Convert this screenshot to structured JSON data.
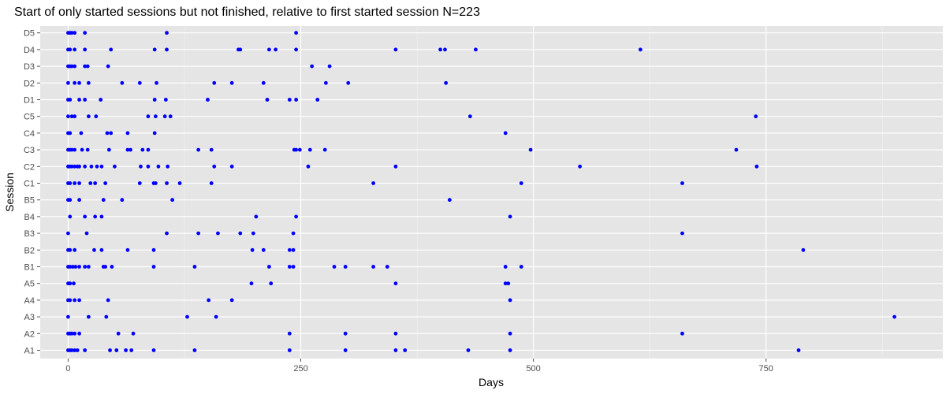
{
  "chart_data": {
    "type": "scatter",
    "title": "Start of only started sessions but not finished, relative to first started session N=223",
    "xlabel": "Days",
    "ylabel": "Session",
    "xlim": [
      -30,
      940
    ],
    "x_ticks": [
      0,
      250,
      500,
      750
    ],
    "x_minor_ticks": [
      125,
      375,
      625,
      875
    ],
    "categories": [
      "A1",
      "A2",
      "A3",
      "A4",
      "A5",
      "B1",
      "B2",
      "B3",
      "B4",
      "B5",
      "C1",
      "C2",
      "C3",
      "C4",
      "C5",
      "D1",
      "D2",
      "D3",
      "D4",
      "D5"
    ],
    "grid": true,
    "legend": "none",
    "point_color": "#0000ff",
    "points": [
      {
        "y": "D5",
        "x": [
          0,
          2,
          4,
          7,
          18,
          106,
          245
        ]
      },
      {
        "y": "D4",
        "x": [
          0,
          2,
          7,
          18,
          46,
          93,
          106,
          183,
          185,
          216,
          223,
          245,
          352,
          400,
          405,
          438,
          615
        ]
      },
      {
        "y": "D3",
        "x": [
          0,
          2,
          4,
          7,
          18,
          21,
          43,
          262,
          281
        ]
      },
      {
        "y": "D2",
        "x": [
          0,
          7,
          12,
          22,
          58,
          77,
          95,
          157,
          176,
          210,
          277,
          301,
          406
        ]
      },
      {
        "y": "D1",
        "x": [
          0,
          2,
          12,
          18,
          35,
          93,
          105,
          150,
          214,
          238,
          245,
          268
        ]
      },
      {
        "y": "C5",
        "x": [
          0,
          4,
          7,
          22,
          30,
          86,
          94,
          104,
          110,
          432,
          739
        ]
      },
      {
        "y": "C4",
        "x": [
          0,
          2,
          14,
          42,
          46,
          64,
          93,
          470
        ]
      },
      {
        "y": "C3",
        "x": [
          0,
          2,
          4,
          7,
          15,
          21,
          44,
          64,
          67,
          80,
          86,
          140,
          154,
          243,
          245,
          249,
          260,
          276,
          497,
          718
        ]
      },
      {
        "y": "C2",
        "x": [
          0,
          2,
          4,
          7,
          10,
          12,
          18,
          25,
          31,
          36,
          50,
          78,
          86,
          97,
          107,
          157,
          176,
          258,
          352,
          550,
          740
        ]
      },
      {
        "y": "C1",
        "x": [
          0,
          2,
          7,
          12,
          24,
          29,
          40,
          77,
          92,
          94,
          106,
          120,
          154,
          328,
          487,
          660
        ]
      },
      {
        "y": "B5",
        "x": [
          0,
          2,
          12,
          38,
          58,
          112,
          410
        ]
      },
      {
        "y": "B4",
        "x": [
          2,
          18,
          29,
          36,
          202,
          245,
          475
        ]
      },
      {
        "y": "B3",
        "x": [
          0,
          20,
          106,
          140,
          161,
          185,
          199,
          242,
          660
        ]
      },
      {
        "y": "B2",
        "x": [
          0,
          2,
          7,
          28,
          36,
          64,
          92,
          198,
          210,
          238,
          242,
          790
        ]
      },
      {
        "y": "B1",
        "x": [
          0,
          2,
          5,
          8,
          12,
          18,
          22,
          38,
          40,
          47,
          92,
          136,
          216,
          238,
          242,
          286,
          298,
          328,
          343,
          470,
          487
        ]
      },
      {
        "y": "A5",
        "x": [
          0,
          2,
          6,
          197,
          218,
          352,
          470,
          473
        ]
      },
      {
        "y": "A4",
        "x": [
          0,
          2,
          7,
          12,
          43,
          151,
          176,
          475
        ]
      },
      {
        "y": "A3",
        "x": [
          0,
          22,
          41,
          128,
          159,
          888
        ]
      },
      {
        "y": "A2",
        "x": [
          0,
          2,
          4,
          7,
          12,
          54,
          70,
          238,
          298,
          352,
          475,
          660
        ]
      },
      {
        "y": "A1",
        "x": [
          0,
          2,
          4,
          7,
          10,
          18,
          45,
          52,
          62,
          68,
          92,
          136,
          238,
          298,
          352,
          362,
          430,
          475,
          785
        ]
      }
    ]
  }
}
